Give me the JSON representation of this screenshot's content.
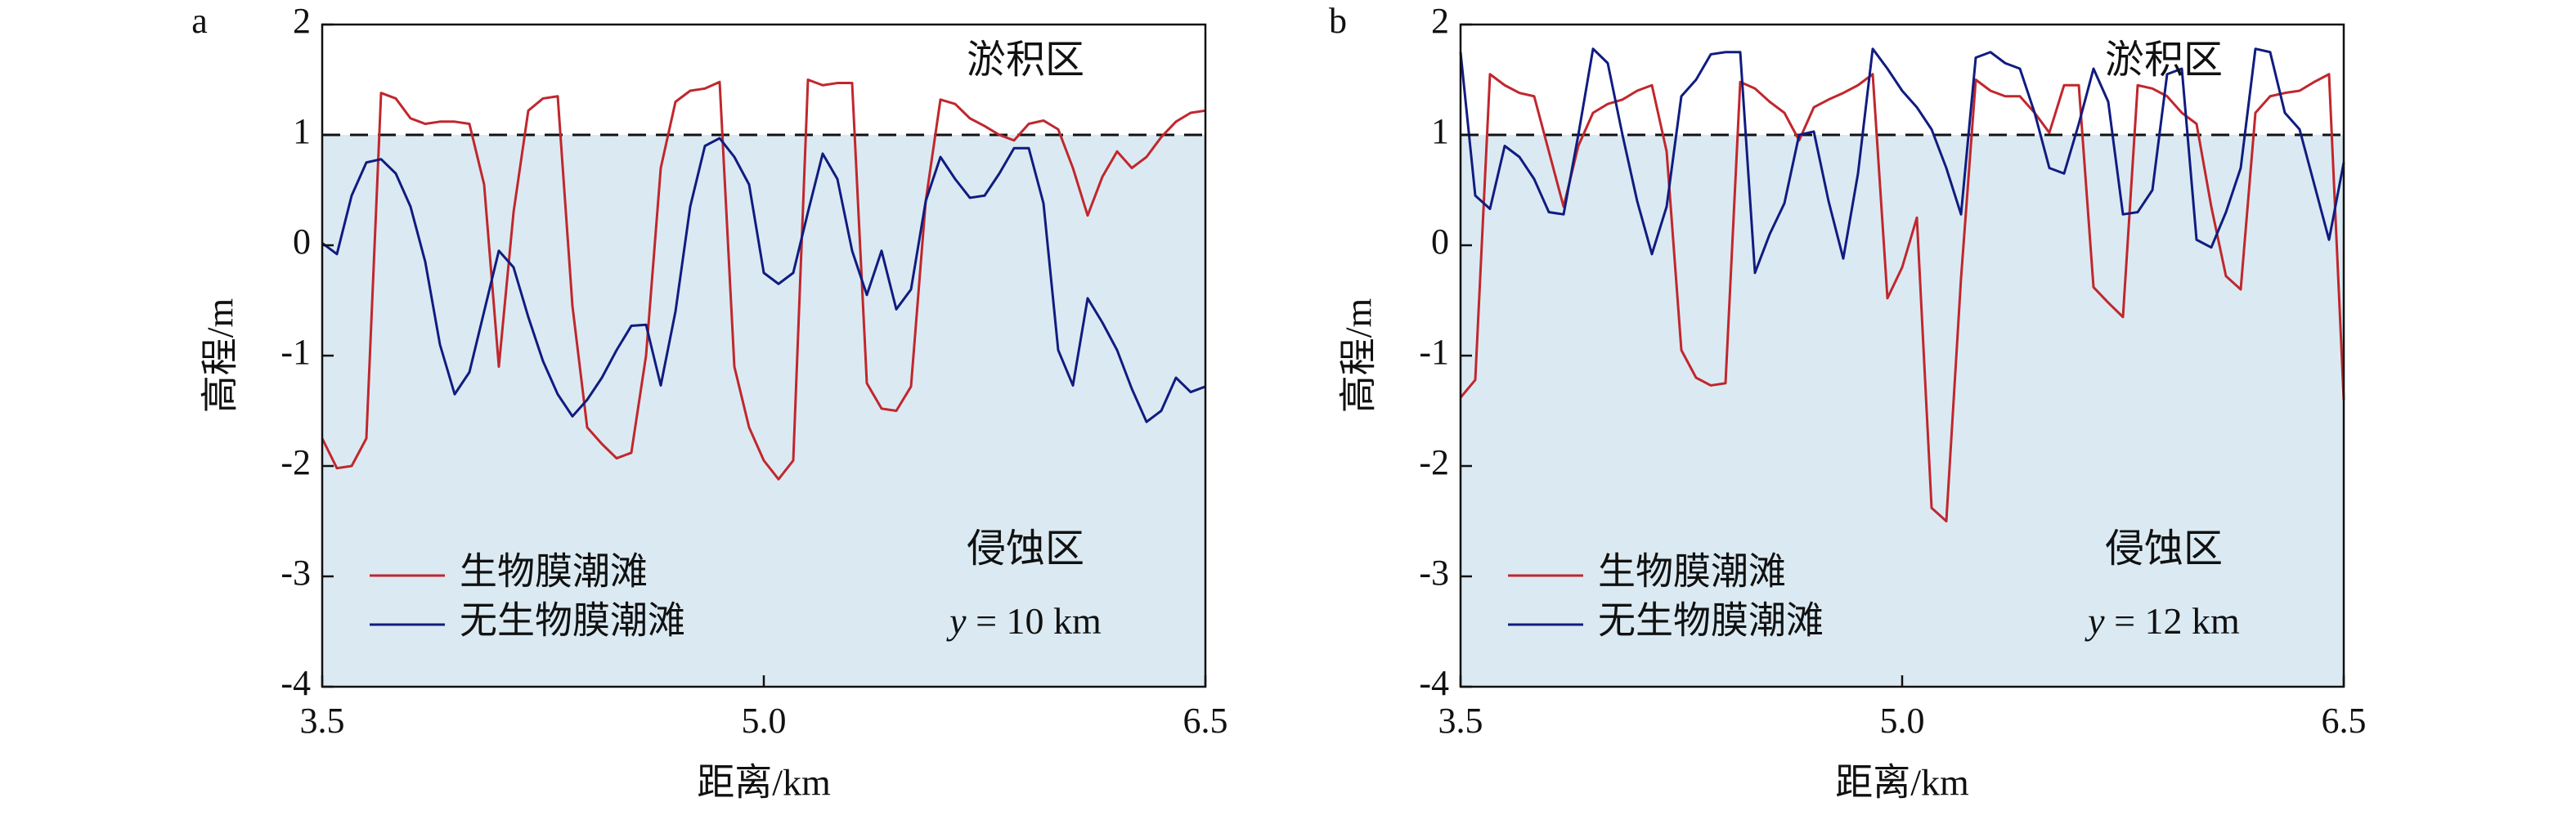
{
  "chart_data": [
    {
      "type": "line",
      "panel_label": "a",
      "xlabel": "距离/km",
      "ylabel": "高程/m",
      "annotations": [
        "淤积区",
        "侵蚀区",
        "y = 10 km"
      ],
      "threshold": 1,
      "fill_color": "#dbeaf2",
      "legend": "lower left",
      "xlim": [
        3.5,
        6.5
      ],
      "xticks": [
        3.5,
        {
          "value": 5,
          "label": "5.0"
        },
        6.5
      ],
      "ylim": [
        -4,
        2
      ],
      "yticks": [
        -4,
        -3,
        -2,
        -1,
        0,
        1,
        2
      ],
      "x": [
        3.5,
        3.55,
        3.6,
        3.65,
        3.7,
        3.75,
        3.8,
        3.85,
        3.9,
        3.95,
        4.0,
        4.05,
        4.1,
        4.15,
        4.2,
        4.25,
        4.3,
        4.35,
        4.4,
        4.45,
        4.5,
        4.55,
        4.6,
        4.65,
        4.7,
        4.75,
        4.8,
        4.85,
        4.9,
        4.95,
        5.0,
        5.05,
        5.1,
        5.15,
        5.2,
        5.25,
        5.3,
        5.35,
        5.4,
        5.45,
        5.5,
        5.55,
        5.6,
        5.65,
        5.7,
        5.75,
        5.8,
        5.85,
        5.9,
        5.95,
        6.0,
        6.05,
        6.1,
        6.15,
        6.2,
        6.25,
        6.3,
        6.35,
        6.4,
        6.45,
        6.5
      ],
      "series": [
        {
          "name": "生物膜潮滩",
          "color": "#c0272d",
          "values": [
            -1.75,
            -2.02,
            -2.0,
            -1.75,
            1.38,
            1.33,
            1.15,
            1.1,
            1.12,
            1.12,
            1.1,
            0.55,
            -1.1,
            0.3,
            1.22,
            1.33,
            1.35,
            -0.55,
            -1.65,
            -1.8,
            -1.93,
            -1.88,
            -1.0,
            0.7,
            1.3,
            1.4,
            1.42,
            1.48,
            -1.1,
            -1.65,
            -1.95,
            -2.12,
            -1.95,
            1.5,
            1.45,
            1.47,
            1.47,
            -1.25,
            -1.48,
            -1.5,
            -1.28,
            0.4,
            1.32,
            1.28,
            1.15,
            1.08,
            1.0,
            0.95,
            1.1,
            1.13,
            1.05,
            0.7,
            0.27,
            0.62,
            0.85,
            0.7,
            0.8,
            0.98,
            1.12,
            1.2,
            1.22
          ]
        },
        {
          "name": "无生物膜潮滩",
          "color": "#101c80",
          "values": [
            0.02,
            -0.08,
            0.45,
            0.75,
            0.78,
            0.65,
            0.35,
            -0.15,
            -0.9,
            -1.35,
            -1.15,
            -0.6,
            -0.05,
            -0.2,
            -0.65,
            -1.05,
            -1.35,
            -1.55,
            -1.4,
            -1.2,
            -0.95,
            -0.73,
            -0.72,
            -1.27,
            -0.6,
            0.35,
            0.9,
            0.97,
            0.8,
            0.55,
            -0.25,
            -0.35,
            -0.25,
            0.3,
            0.83,
            0.6,
            -0.05,
            -0.45,
            -0.05,
            -0.58,
            -0.4,
            0.4,
            0.8,
            0.6,
            0.43,
            0.45,
            0.65,
            0.88,
            0.88,
            0.38,
            -0.95,
            -1.27,
            -0.48,
            -0.7,
            -0.95,
            -1.3,
            -1.6,
            -1.5,
            -1.2,
            -1.33,
            -1.28
          ]
        }
      ]
    },
    {
      "type": "line",
      "panel_label": "b",
      "xlabel": "距离/km",
      "ylabel": "高程/m",
      "annotations": [
        "淤积区",
        "侵蚀区",
        "y = 12 km"
      ],
      "threshold": 1,
      "fill_color": "#dbeaf2",
      "legend": "lower left",
      "xlim": [
        3.5,
        6.5
      ],
      "xticks": [
        3.5,
        {
          "value": 5,
          "label": "5.0"
        },
        6.5
      ],
      "ylim": [
        -4,
        2
      ],
      "yticks": [
        -4,
        -3,
        -2,
        -1,
        0,
        1,
        2
      ],
      "x": [
        3.5,
        3.55,
        3.6,
        3.65,
        3.7,
        3.75,
        3.8,
        3.85,
        3.9,
        3.95,
        4.0,
        4.05,
        4.1,
        4.15,
        4.2,
        4.25,
        4.3,
        4.35,
        4.4,
        4.45,
        4.5,
        4.55,
        4.6,
        4.65,
        4.7,
        4.75,
        4.8,
        4.85,
        4.9,
        4.95,
        5.0,
        5.05,
        5.1,
        5.15,
        5.2,
        5.25,
        5.3,
        5.35,
        5.4,
        5.45,
        5.5,
        5.55,
        5.6,
        5.65,
        5.7,
        5.75,
        5.8,
        5.85,
        5.9,
        5.95,
        6.0,
        6.05,
        6.1,
        6.15,
        6.2,
        6.25,
        6.3,
        6.35,
        6.4,
        6.45,
        6.5
      ],
      "series": [
        {
          "name": "生物膜潮滩",
          "color": "#c0272d",
          "values": [
            -1.38,
            -1.22,
            1.55,
            1.45,
            1.38,
            1.35,
            0.85,
            0.35,
            0.9,
            1.2,
            1.28,
            1.32,
            1.4,
            1.45,
            0.85,
            -0.95,
            -1.2,
            -1.27,
            -1.25,
            1.48,
            1.42,
            1.3,
            1.2,
            0.95,
            1.25,
            1.32,
            1.38,
            1.45,
            1.55,
            -0.48,
            -0.2,
            0.25,
            -2.38,
            -2.5,
            -0.3,
            1.5,
            1.4,
            1.35,
            1.35,
            1.2,
            1.02,
            1.45,
            1.45,
            -0.38,
            -0.52,
            -0.65,
            1.45,
            1.42,
            1.35,
            1.2,
            1.1,
            0.35,
            -0.28,
            -0.4,
            1.2,
            1.35,
            1.38,
            1.4,
            1.48,
            1.55,
            -1.4
          ]
        },
        {
          "name": "无生物膜潮滩",
          "color": "#101c80",
          "values": [
            1.75,
            0.45,
            0.33,
            0.9,
            0.8,
            0.6,
            0.3,
            0.28,
            1.0,
            1.78,
            1.65,
            1.0,
            0.4,
            -0.08,
            0.35,
            1.35,
            1.5,
            1.73,
            1.75,
            1.75,
            -0.25,
            0.1,
            0.38,
            1.0,
            1.03,
            0.4,
            -0.12,
            0.65,
            1.78,
            1.6,
            1.4,
            1.25,
            1.05,
            0.7,
            0.28,
            1.7,
            1.75,
            1.65,
            1.6,
            1.2,
            0.7,
            0.65,
            1.1,
            1.6,
            1.3,
            0.28,
            0.3,
            0.5,
            1.55,
            1.6,
            0.05,
            -0.02,
            0.3,
            0.7,
            1.78,
            1.75,
            1.2,
            1.05,
            0.55,
            0.05,
            0.75
          ]
        }
      ]
    }
  ]
}
